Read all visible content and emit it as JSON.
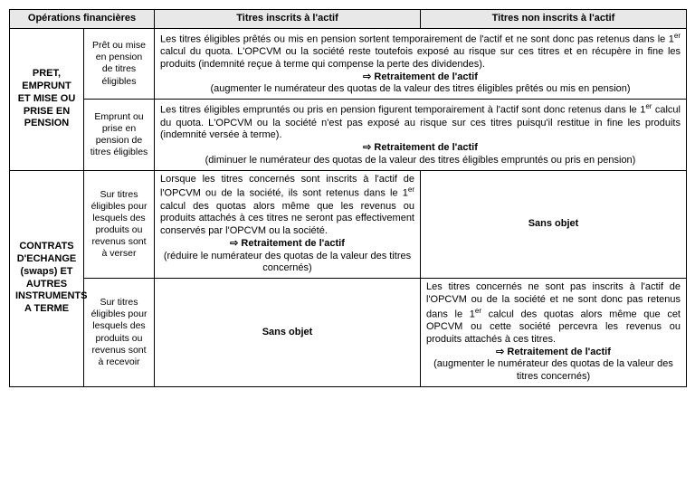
{
  "headers": {
    "col1": "Opérations financières",
    "col2": "Titres inscrits à l'actif",
    "col3": "Titres non inscrits à l'actif"
  },
  "sections": {
    "pret": {
      "title": "PRET, EMPRUNT ET MISE OU PRISE EN PENSION",
      "rowA": {
        "sub": "Prêt ou mise en pension de titres éligibles",
        "para": "Les titres éligibles prêtés ou mis en pension sortent temporairement de l'actif et ne sont donc pas retenus dans le 1er calcul du quota. L'OPCVM ou la société reste toutefois exposé au risque sur ces titres et en récupère in fine les produits (indemnité reçue à terme qui compense la perte des dividendes).",
        "retreat": "Retraitement de l'actif",
        "note": "(augmenter le numérateur des quotas de la valeur des titres éligibles prêtés ou mis en pension)"
      },
      "rowB": {
        "sub": "Emprunt ou prise en pension de titres éligibles",
        "para": "Les titres éligibles empruntés ou pris en pension figurent temporairement à l'actif sont donc retenus dans le 1er calcul du quota. L'OPCVM ou la société n'est pas exposé au risque sur ces titres puisqu'il restitue in fine les produits (indemnité versée à terme).",
        "retreat": "Retraitement de l'actif",
        "note": "(diminuer le numérateur des quotas de la valeur des titres éligibles empruntés ou pris en pension)"
      }
    },
    "swaps": {
      "title": "CONTRATS D'ECHANGE (swaps) ET AUTRES INSTRUMENTS A TERME",
      "rowA": {
        "sub": "Sur titres éligibles pour lesquels des produits ou revenus sont à verser",
        "left_para": "Lorsque les titres concernés sont inscrits à l'actif de l'OPCVM ou de la société, ils sont retenus dans le 1er calcul des quotas alors même que les revenus ou produits attachés à ces titres ne seront pas effectivement conservés par l'OPCVM ou la société.",
        "left_retreat": "Retraitement de l'actif",
        "left_note": "(réduire le numérateur des quotas de la valeur des titres concernés)",
        "right": "Sans objet"
      },
      "rowB": {
        "sub": "Sur titres éligibles pour lesquels des produits ou revenus sont à recevoir",
        "left": "Sans objet",
        "right_para": "Les titres concernés ne sont pas inscrits à l'actif de l'OPCVM ou de la société et ne sont donc pas retenus dans le 1er calcul des quotas alors même que cet OPCVM ou cette société percevra les revenus ou produits attachés à ces titres.",
        "right_retreat": "Retraitement de l'actif",
        "right_note": "(augmenter le numérateur des quotas de la valeur des titres concernés)"
      }
    }
  }
}
